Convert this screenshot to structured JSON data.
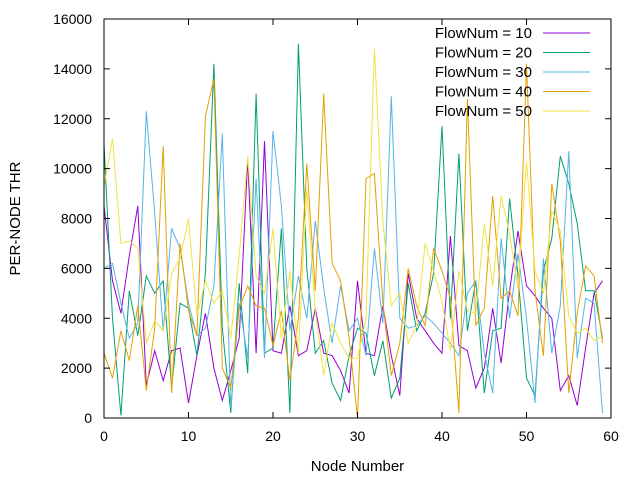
{
  "chart_data": {
    "type": "line",
    "xlabel": "Node Number",
    "ylabel": "PER-NODE THR",
    "xlim": [
      0,
      60
    ],
    "ylim": [
      0,
      16000
    ],
    "xticks": [
      0,
      10,
      20,
      30,
      40,
      50,
      60
    ],
    "yticks": [
      0,
      2000,
      4000,
      6000,
      8000,
      10000,
      12000,
      14000,
      16000
    ],
    "grid": false,
    "legend_position": "top-right",
    "x": [
      0,
      1,
      2,
      3,
      4,
      5,
      6,
      7,
      8,
      9,
      10,
      11,
      12,
      13,
      14,
      15,
      16,
      17,
      18,
      19,
      20,
      21,
      22,
      23,
      24,
      25,
      26,
      27,
      28,
      29,
      30,
      31,
      32,
      33,
      34,
      35,
      36,
      37,
      38,
      39,
      40,
      41,
      42,
      43,
      44,
      45,
      46,
      47,
      48,
      49,
      50,
      51,
      52,
      53,
      54,
      55,
      56,
      57,
      58,
      59
    ],
    "series": [
      {
        "name": "FlowNum = 10",
        "color": "#9400d3",
        "values": [
          8500,
          5500,
          4200,
          6500,
          8500,
          1300,
          2700,
          1500,
          2700,
          2800,
          600,
          2500,
          4200,
          2000,
          700,
          1900,
          3200,
          10400,
          2600,
          11100,
          2700,
          2600,
          4500,
          2500,
          2700,
          4400,
          2600,
          2500,
          1900,
          1000,
          5500,
          2600,
          2500,
          4500,
          2500,
          900,
          5800,
          4000,
          3500,
          3000,
          2600,
          7300,
          2900,
          2700,
          1200,
          2000,
          4400,
          2200,
          5100,
          7500,
          5300,
          4900,
          4400,
          4000,
          1100,
          1700,
          500,
          2800,
          5000,
          5500
        ]
      },
      {
        "name": "FlowNum = 20",
        "color": "#009e73",
        "values": [
          11000,
          4000,
          100,
          5100,
          3300,
          5700,
          5000,
          5500,
          1200,
          4600,
          4400,
          2500,
          5800,
          14200,
          3600,
          200,
          5400,
          1800,
          13000,
          2600,
          2800,
          7600,
          200,
          15000,
          6000,
          2600,
          3100,
          1400,
          700,
          2500,
          3600,
          3400,
          1700,
          3100,
          800,
          1600,
          5400,
          3500,
          4200,
          5800,
          11700,
          4000,
          10600,
          3500,
          5500,
          1000,
          3500,
          3600,
          8800,
          5700,
          1600,
          900,
          5900,
          7200,
          10500,
          9400,
          7800,
          5100,
          5100,
          3200
        ]
      },
      {
        "name": "FlowNum = 30",
        "color": "#56b4e9",
        "values": [
          6000,
          6200,
          4600,
          3200,
          3800,
          12300,
          8200,
          3500,
          7600,
          6800,
          4600,
          3300,
          3600,
          5300,
          11400,
          400,
          4600,
          2400,
          9600,
          2400,
          11500,
          8500,
          3500,
          5700,
          4000,
          7900,
          5200,
          3000,
          5300,
          3500,
          4000,
          2500,
          6800,
          3800,
          12900,
          4000,
          3600,
          3700,
          4100,
          3800,
          3400,
          3000,
          2500,
          5000,
          5500,
          2600,
          1000,
          7200,
          4000,
          6600,
          4000,
          600,
          6400,
          2600,
          4500,
          10700,
          2400,
          4800,
          4600,
          200
        ]
      },
      {
        "name": "FlowNum = 40",
        "color": "#e69f00",
        "values": [
          2600,
          1600,
          3500,
          2300,
          4500,
          1100,
          3600,
          10900,
          1000,
          7000,
          4300,
          3300,
          12100,
          13600,
          2000,
          1200,
          4400,
          5300,
          4500,
          4400,
          2900,
          4300,
          1500,
          4000,
          10200,
          5100,
          13000,
          6200,
          5500,
          3200,
          0,
          9600,
          9800,
          4600,
          1700,
          3000,
          6000,
          4500,
          3700,
          6800,
          5900,
          4800,
          200,
          12800,
          3700,
          4400,
          8900,
          4800,
          5100,
          4100,
          14200,
          5100,
          2500,
          9400,
          7100,
          1000,
          4200,
          6100,
          5700,
          3000
        ]
      },
      {
        "name": "FlowNum = 50",
        "color": "#f0e442",
        "values": [
          9300,
          11200,
          7000,
          7100,
          6800,
          3000,
          3900,
          3500,
          5800,
          6400,
          8000,
          4100,
          5500,
          4600,
          5100,
          3200,
          6500,
          10500,
          5700,
          5000,
          7600,
          3200,
          5900,
          2600,
          9200,
          4300,
          1700,
          3800,
          3000,
          2400,
          2400,
          4000,
          14800,
          7900,
          4500,
          5000,
          3000,
          3700,
          7000,
          5900,
          4700,
          2700,
          5900,
          4300,
          4200,
          7800,
          5300,
          8900,
          7400,
          5200,
          10300,
          5900,
          5000,
          8300,
          7500,
          4100,
          3400,
          3600,
          3100,
          3300
        ]
      }
    ]
  }
}
